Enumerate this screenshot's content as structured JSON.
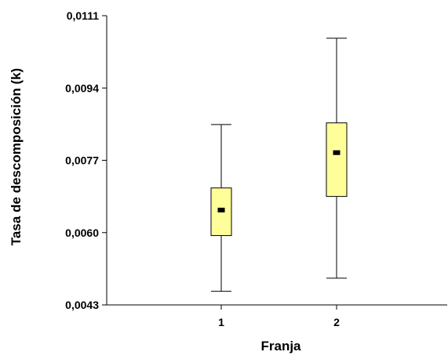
{
  "chart_data": {
    "type": "box",
    "title": "",
    "xlabel": "Franja",
    "ylabel": "Tasa de descomposición (k)",
    "ylim": [
      0.0043,
      0.0111
    ],
    "yticks": [
      "0,0043",
      "0,0060",
      "0,0077",
      "0,0094",
      "0,0111"
    ],
    "ytick_values": [
      0.0043,
      0.006,
      0.0077,
      0.0094,
      0.0111
    ],
    "categories": [
      "1",
      "2"
    ],
    "boxes": [
      {
        "category": "1",
        "whisker_low": 0.00462,
        "q1": 0.00593,
        "median": 0.00653,
        "q3": 0.00705,
        "whisker_high": 0.00854
      },
      {
        "category": "2",
        "whisker_low": 0.00493,
        "q1": 0.00685,
        "median": 0.00788,
        "q3": 0.00858,
        "whisker_high": 0.01057
      }
    ],
    "grid": false,
    "colors": {
      "box_fill": "#FFFF99",
      "box_stroke": "#000000",
      "median_marker": "#000000"
    }
  }
}
